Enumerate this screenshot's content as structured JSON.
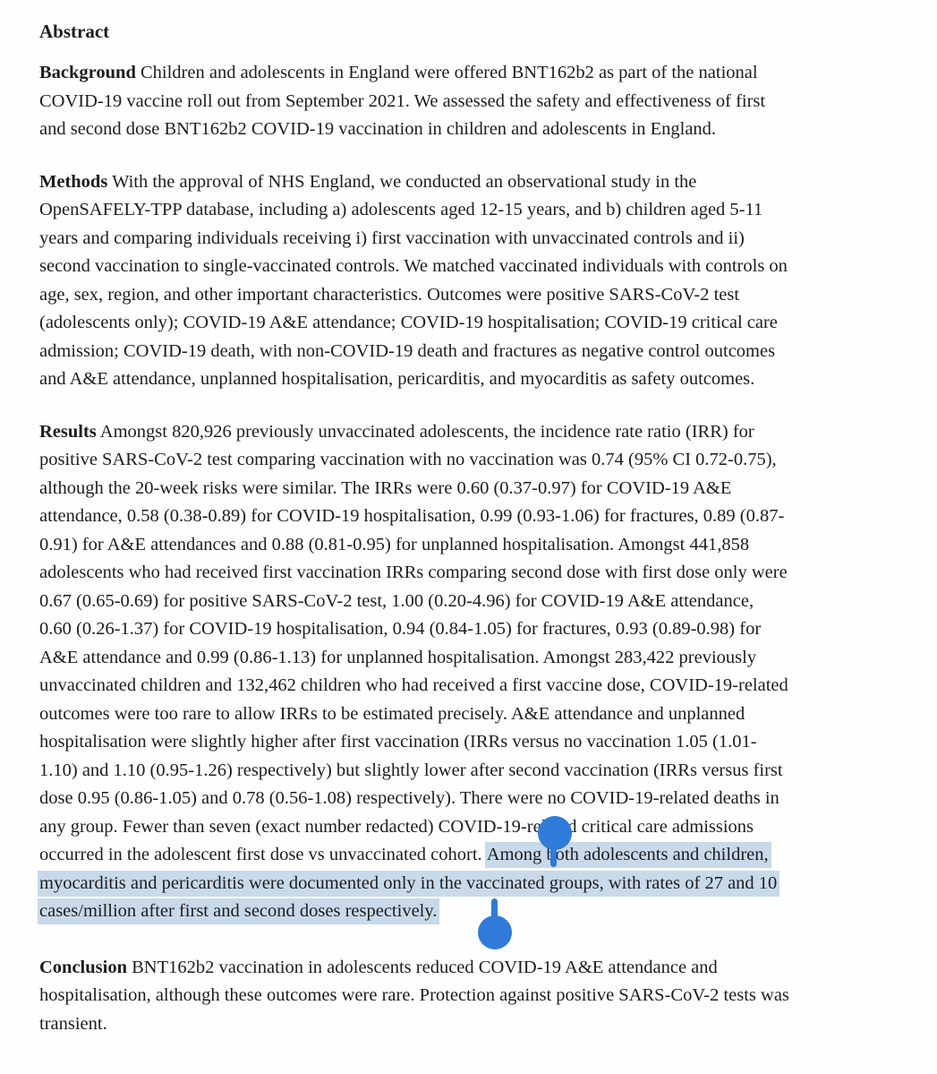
{
  "document": {
    "heading": "Abstract",
    "background": {
      "label": "Background",
      "lines": [
        " Children and adolescents in England were offered BNT162b2 as part of the national",
        "COVID-19 vaccine roll out from September 2021. We assessed the safety and effectiveness of first",
        "and second dose BNT162b2 COVID-19 vaccination in children and adolescents in England."
      ]
    },
    "methods": {
      "label": "Methods",
      "lines": [
        " With the approval of NHS England, we conducted an observational study in the",
        "OpenSAFELY-TPP database, including a) adolescents aged 12-15 years, and b) children aged 5-11",
        "years and comparing individuals receiving i) first vaccination with unvaccinated controls and ii)",
        "second vaccination to single-vaccinated controls. We matched vaccinated individuals with controls on",
        "age, sex, region, and other important characteristics. Outcomes were positive SARS-CoV-2 test",
        "(adolescents only); COVID-19 A&E attendance; COVID-19 hospitalisation; COVID-19 critical care",
        "admission; COVID-19 death, with non-COVID-19 death and fractures as negative control outcomes",
        "and A&E attendance, unplanned hospitalisation, pericarditis, and myocarditis as safety outcomes."
      ]
    },
    "results": {
      "label": "Results",
      "lines": [
        " Amongst 820,926 previously unvaccinated adolescents, the incidence rate ratio (IRR) for",
        "positive SARS-CoV-2 test comparing vaccination with no vaccination was 0.74 (95% CI 0.72-0.75),",
        "although the 20-week risks were similar. The IRRs were 0.60 (0.37-0.97) for COVID-19 A&E",
        "attendance, 0.58 (0.38-0.89) for COVID-19 hospitalisation, 0.99 (0.93-1.06) for fractures, 0.89 (0.87-",
        "0.91) for A&E attendances and 0.88 (0.81-0.95) for unplanned hospitalisation. Amongst 441,858",
        "adolescents who had received first vaccination IRRs comparing second dose with first dose only were",
        "0.67 (0.65-0.69) for positive SARS-CoV-2 test, 1.00 (0.20-4.96) for COVID-19 A&E attendance,",
        "0.60 (0.26-1.37) for COVID-19 hospitalisation, 0.94 (0.84-1.05) for fractures, 0.93 (0.89-0.98) for",
        "A&E attendance and 0.99 (0.86-1.13) for unplanned hospitalisation. Amongst 283,422 previously",
        "unvaccinated children and 132,462 children who had received a first vaccine dose, COVID-19-related",
        "outcomes were too rare to allow IRRs to be estimated precisely. A&E attendance and unplanned",
        "hospitalisation were slightly higher after first vaccination (IRRs versus no vaccination 1.05 (1.01-",
        "1.10) and 1.10 (0.95-1.26) respectively) but slightly lower after second vaccination (IRRs versus first",
        "dose 0.95 (0.86-1.05) and 0.78 (0.56-1.08) respectively). There were no COVID-19-related deaths in",
        "any group. Fewer than seven (exact number redacted) COVID-19-related critical care admissions"
      ]
    },
    "conclusion": {
      "label": "Conclusion",
      "lines": [
        " BNT162b2 vaccination in adolescents reduced COVID-19 A&E attendance and",
        "hospitalisation, although these outcomes were rare. Protection against positive SARS-CoV-2 tests was",
        "transient."
      ]
    }
  },
  "selection": {
    "pre_text": "occurred in the adolescent first dose vs unvaccinated cohort. ",
    "selected_line_1": "Among both adolescents and children,",
    "selected_line_2": "myocarditis and pericarditis were documented only in the vaccinated groups, with rates of 27 and 10",
    "selected_line_3": "cases/million after first and second doses respectively.",
    "highlight_color": "#c8d9e9",
    "handle_color": "#2e7bd9"
  }
}
